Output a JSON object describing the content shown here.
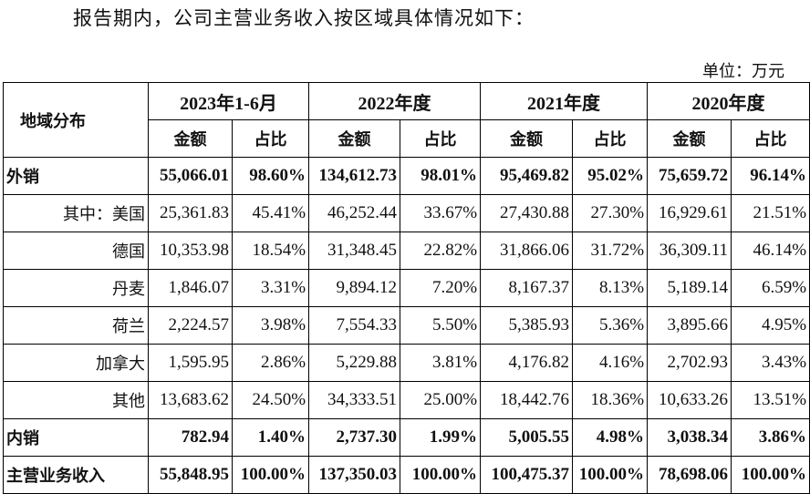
{
  "intro": "报告期内，公司主营业务收入按区域具体情况如下：",
  "unit": "单位：万元",
  "header": {
    "region": "地域分布",
    "periods": [
      "2023年1-6月",
      "2022年度",
      "2021年度",
      "2020年度"
    ],
    "amount": "金额",
    "ratio": "占比"
  },
  "rows": [
    {
      "label": "外销",
      "bold": true,
      "cells": [
        "55,066.01",
        "98.60%",
        "134,612.73",
        "98.01%",
        "95,469.82",
        "95.02%",
        "75,659.72",
        "96.14%"
      ]
    },
    {
      "label": "其中：美国",
      "bold": false,
      "cells": [
        "25,361.83",
        "45.41%",
        "46,252.44",
        "33.67%",
        "27,430.88",
        "27.30%",
        "16,929.61",
        "21.51%"
      ]
    },
    {
      "label": "德国",
      "bold": false,
      "cells": [
        "10,353.98",
        "18.54%",
        "31,348.45",
        "22.82%",
        "31,866.06",
        "31.72%",
        "36,309.11",
        "46.14%"
      ]
    },
    {
      "label": "丹麦",
      "bold": false,
      "cells": [
        "1,846.07",
        "3.31%",
        "9,894.12",
        "7.20%",
        "8,167.37",
        "8.13%",
        "5,189.14",
        "6.59%"
      ]
    },
    {
      "label": "荷兰",
      "bold": false,
      "cells": [
        "2,224.57",
        "3.98%",
        "7,554.33",
        "5.50%",
        "5,385.93",
        "5.36%",
        "3,895.66",
        "4.95%"
      ]
    },
    {
      "label": "加拿大",
      "bold": false,
      "cells": [
        "1,595.95",
        "2.86%",
        "5,229.88",
        "3.81%",
        "4,176.82",
        "4.16%",
        "2,702.93",
        "3.43%"
      ]
    },
    {
      "label": "其他",
      "bold": false,
      "cells": [
        "13,683.62",
        "24.50%",
        "34,333.51",
        "25.00%",
        "18,442.76",
        "18.36%",
        "10,633.26",
        "13.51%"
      ]
    },
    {
      "label": "内销",
      "bold": true,
      "cells": [
        "782.94",
        "1.40%",
        "2,737.30",
        "1.99%",
        "5,005.55",
        "4.98%",
        "3,038.34",
        "3.86%"
      ]
    },
    {
      "label": "主营业务收入",
      "bold": true,
      "cells": [
        "55,848.95",
        "100.00%",
        "137,350.03",
        "100.00%",
        "100,475.37",
        "100.00%",
        "78,698.06",
        "100.00%"
      ]
    }
  ]
}
